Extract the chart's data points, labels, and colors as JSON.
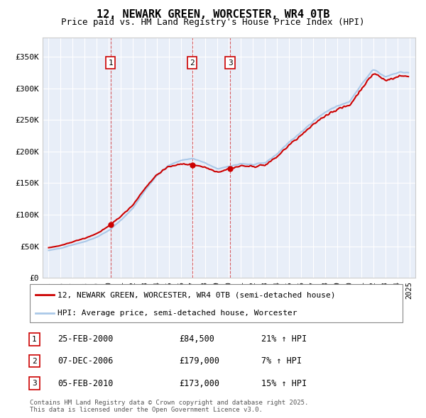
{
  "title": "12, NEWARK GREEN, WORCESTER, WR4 0TB",
  "subtitle": "Price paid vs. HM Land Registry's House Price Index (HPI)",
  "legend_line1": "12, NEWARK GREEN, WORCESTER, WR4 0TB (semi-detached house)",
  "legend_line2": "HPI: Average price, semi-detached house, Worcester",
  "footer": "Contains HM Land Registry data © Crown copyright and database right 2025.\nThis data is licensed under the Open Government Licence v3.0.",
  "sale_color": "#cc0000",
  "hpi_color": "#aac8e8",
  "bg_color": "#e8eef8",
  "sales": [
    {
      "label": "1",
      "date": "25-FEB-2000",
      "price": 84500,
      "pct": "21%",
      "direction": "↑",
      "x_year": 2000.15
    },
    {
      "label": "2",
      "date": "07-DEC-2006",
      "price": 179000,
      "pct": "7%",
      "direction": "↑",
      "x_year": 2006.93
    },
    {
      "label": "3",
      "date": "05-FEB-2010",
      "price": 173000,
      "pct": "15%",
      "direction": "↑",
      "x_year": 2010.1
    }
  ],
  "ylim": [
    0,
    380000
  ],
  "xlim_start": 1994.5,
  "xlim_end": 2025.5,
  "yticks": [
    0,
    50000,
    100000,
    150000,
    200000,
    250000,
    300000,
    350000
  ],
  "ytick_labels": [
    "£0",
    "£50K",
    "£100K",
    "£150K",
    "£200K",
    "£250K",
    "£300K",
    "£350K"
  ],
  "xticks": [
    1995,
    1996,
    1997,
    1998,
    1999,
    2000,
    2001,
    2002,
    2003,
    2004,
    2005,
    2006,
    2007,
    2008,
    2009,
    2010,
    2011,
    2012,
    2013,
    2014,
    2015,
    2016,
    2017,
    2018,
    2019,
    2020,
    2021,
    2022,
    2023,
    2024,
    2025
  ],
  "hpi_base_years": [
    1995,
    1996,
    1997,
    1998,
    1999,
    2000,
    2001,
    2002,
    2003,
    2004,
    2005,
    2006,
    2007,
    2008,
    2009,
    2010,
    2011,
    2012,
    2013,
    2014,
    2015,
    2016,
    2017,
    2018,
    2019,
    2020,
    2021,
    2022,
    2023,
    2024
  ],
  "hpi_base_values": [
    43500,
    47000,
    52500,
    57500,
    64500,
    75000,
    91000,
    110000,
    138000,
    162000,
    178000,
    186000,
    189000,
    182000,
    172500,
    176000,
    181000,
    179000,
    182000,
    196000,
    215000,
    230000,
    248000,
    262000,
    272000,
    278000,
    305000,
    330000,
    318000,
    325000
  ]
}
